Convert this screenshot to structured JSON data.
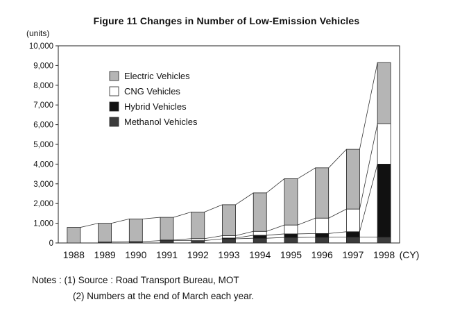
{
  "chart_data": {
    "type": "bar",
    "stacked": true,
    "title": "Figure 11 Changes in Number of Low-Emission Vehicles",
    "ylabel": "(units)",
    "xlabel_suffix": "(CY)",
    "categories": [
      "1988",
      "1989",
      "1990",
      "1991",
      "1992",
      "1993",
      "1994",
      "1995",
      "1996",
      "1997",
      "1998"
    ],
    "ylim": [
      0,
      10000
    ],
    "yticks": [
      "0",
      "1,000",
      "2,000",
      "3,000",
      "4,000",
      "5,000",
      "6,000",
      "7,000",
      "8,000",
      "9,000",
      "10,000"
    ],
    "grid": false,
    "legend_position": "upper-left",
    "series": [
      {
        "name": "Methanol Vehicles",
        "color": "#3c3c3c",
        "values": [
          0,
          50,
          70,
          120,
          120,
          210,
          240,
          280,
          290,
          300,
          300
        ]
      },
      {
        "name": "Hybrid Vehicles",
        "color": "#111111",
        "values": [
          0,
          0,
          0,
          0,
          0,
          40,
          150,
          180,
          190,
          270,
          3700
        ]
      },
      {
        "name": "CNG Vehicles",
        "color": "#ffffff",
        "values": [
          0,
          0,
          0,
          30,
          100,
          120,
          200,
          450,
          780,
          1150,
          2050
        ]
      },
      {
        "name": "Electric Vehicles",
        "color": "#b5b5b5",
        "values": [
          790,
          950,
          1150,
          1150,
          1350,
          1570,
          1950,
          2350,
          2550,
          3030,
          3100
        ]
      }
    ]
  },
  "notes": {
    "line1": "Notes : (1) Source : Road Transport Bureau, MOT",
    "line2": "(2) Numbers at the end of March each year."
  }
}
